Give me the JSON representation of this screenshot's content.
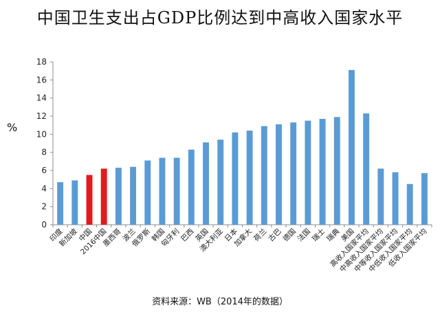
{
  "title": "中国卫生支出占GDP比例达到中高收入国家水平",
  "source": "资料来源：WB（2014年的数据）",
  "colors": {
    "default_bar": "#5B9BD5",
    "highlight_bar": "#E31A1C"
  },
  "chart_data": {
    "type": "bar",
    "title": "中国卫生支出占GDP比例达到中高收入国家水平",
    "xlabel": "",
    "ylabel": "%",
    "ylim": [
      0,
      18
    ],
    "yticks": [
      0,
      2,
      4,
      6,
      8,
      10,
      12,
      14,
      16,
      18
    ],
    "grid": false,
    "categories": [
      "印度",
      "新加坡",
      "中国",
      "2016中国",
      "墨西哥",
      "波兰",
      "俄罗斯",
      "韩国",
      "匈牙利",
      "巴西",
      "英国",
      "澳大利亚",
      "日本",
      "加拿大",
      "荷兰",
      "古巴",
      "德国",
      "法国",
      "瑞士",
      "瑞典",
      "美国",
      "高收入国家平均",
      "中高收入国家平均",
      "中等收入国家平均",
      "中低收入国家平均",
      "低收入国家平均"
    ],
    "values": [
      4.7,
      4.9,
      5.5,
      6.2,
      6.3,
      6.4,
      7.1,
      7.4,
      7.4,
      8.3,
      9.1,
      9.4,
      10.2,
      10.4,
      10.9,
      11.1,
      11.3,
      11.5,
      11.7,
      11.9,
      17.1,
      12.3,
      6.2,
      5.8,
      4.5,
      5.7
    ],
    "highlight": [
      "中国",
      "2016中国"
    ]
  }
}
